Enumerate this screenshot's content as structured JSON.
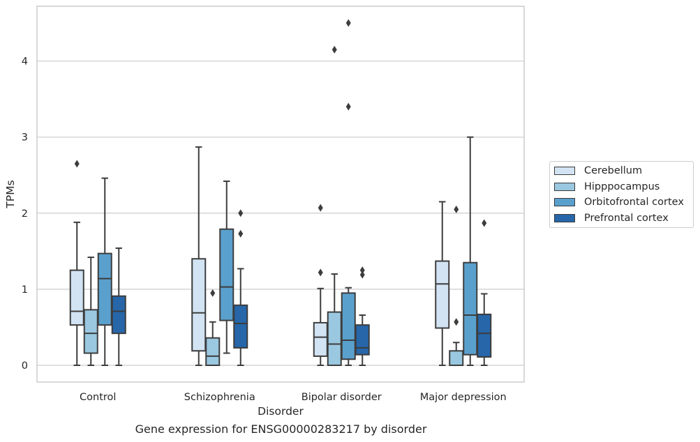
{
  "chart_data": {
    "type": "box",
    "xlabel": "Disorder",
    "ylabel": "TPMs",
    "caption": "Gene expression for ENSG00000283217 by disorder",
    "categories": [
      "Control",
      "Schizophrenia",
      "Bipolar disorder",
      "Major depression"
    ],
    "yticks": [
      0,
      1,
      2,
      3,
      4
    ],
    "ylim": [
      -0.22,
      4.72
    ],
    "grid": "horizontal",
    "legend_position": "right",
    "series": [
      {
        "name": "Cerebellum",
        "color": "#d2e3f3",
        "boxes": [
          {
            "whisker_low": 0,
            "q1": 0.53,
            "median": 0.71,
            "q3": 1.25,
            "whisker_high": 1.88,
            "outliers": [
              2.65
            ]
          },
          {
            "whisker_low": 0,
            "q1": 0.19,
            "median": 0.69,
            "q3": 1.4,
            "whisker_high": 2.87,
            "outliers": []
          },
          {
            "whisker_low": 0,
            "q1": 0.12,
            "median": 0.37,
            "q3": 0.56,
            "whisker_high": 1.01,
            "outliers": [
              1.22,
              2.07
            ]
          },
          {
            "whisker_low": 0,
            "q1": 0.49,
            "median": 1.07,
            "q3": 1.37,
            "whisker_high": 2.15,
            "outliers": []
          }
        ]
      },
      {
        "name": "Hipppocampus",
        "color": "#9ac8e0",
        "boxes": [
          {
            "whisker_low": 0,
            "q1": 0.16,
            "median": 0.42,
            "q3": 0.73,
            "whisker_high": 1.42,
            "outliers": []
          },
          {
            "whisker_low": 0,
            "q1": 0,
            "median": 0.12,
            "q3": 0.36,
            "whisker_high": 0.57,
            "outliers": [
              0.95
            ]
          },
          {
            "whisker_low": 0,
            "q1": 0,
            "median": 0.28,
            "q3": 0.7,
            "whisker_high": 1.2,
            "outliers": [
              4.15
            ]
          },
          {
            "whisker_low": 0,
            "q1": 0,
            "median": 0.0,
            "q3": 0.19,
            "whisker_high": 0.3,
            "outliers": [
              0.57,
              2.05
            ]
          }
        ]
      },
      {
        "name": "Orbitofrontal cortex",
        "color": "#5aa0cd",
        "boxes": [
          {
            "whisker_low": 0,
            "q1": 0.53,
            "median": 1.14,
            "q3": 1.47,
            "whisker_high": 2.46,
            "outliers": []
          },
          {
            "whisker_low": 0.16,
            "q1": 0.59,
            "median": 1.03,
            "q3": 1.79,
            "whisker_high": 2.42,
            "outliers": []
          },
          {
            "whisker_low": 0,
            "q1": 0.08,
            "median": 0.33,
            "q3": 0.95,
            "whisker_high": 1.02,
            "outliers": [
              3.4,
              4.5
            ]
          },
          {
            "whisker_low": 0,
            "q1": 0.14,
            "median": 0.66,
            "q3": 1.35,
            "whisker_high": 3.0,
            "outliers": []
          }
        ]
      },
      {
        "name": "Prefrontal cortex",
        "color": "#2666a9",
        "boxes": [
          {
            "whisker_low": 0,
            "q1": 0.42,
            "median": 0.71,
            "q3": 0.91,
            "whisker_high": 1.54,
            "outliers": []
          },
          {
            "whisker_low": 0,
            "q1": 0.23,
            "median": 0.55,
            "q3": 0.79,
            "whisker_high": 1.27,
            "outliers": [
              1.73,
              2.0
            ]
          },
          {
            "whisker_low": 0,
            "q1": 0.14,
            "median": 0.23,
            "q3": 0.53,
            "whisker_high": 0.66,
            "outliers": [
              1.19,
              1.25
            ]
          },
          {
            "whisker_low": 0,
            "q1": 0.11,
            "median": 0.42,
            "q3": 0.67,
            "whisker_high": 0.94,
            "outliers": [
              1.87
            ]
          }
        ]
      }
    ]
  }
}
